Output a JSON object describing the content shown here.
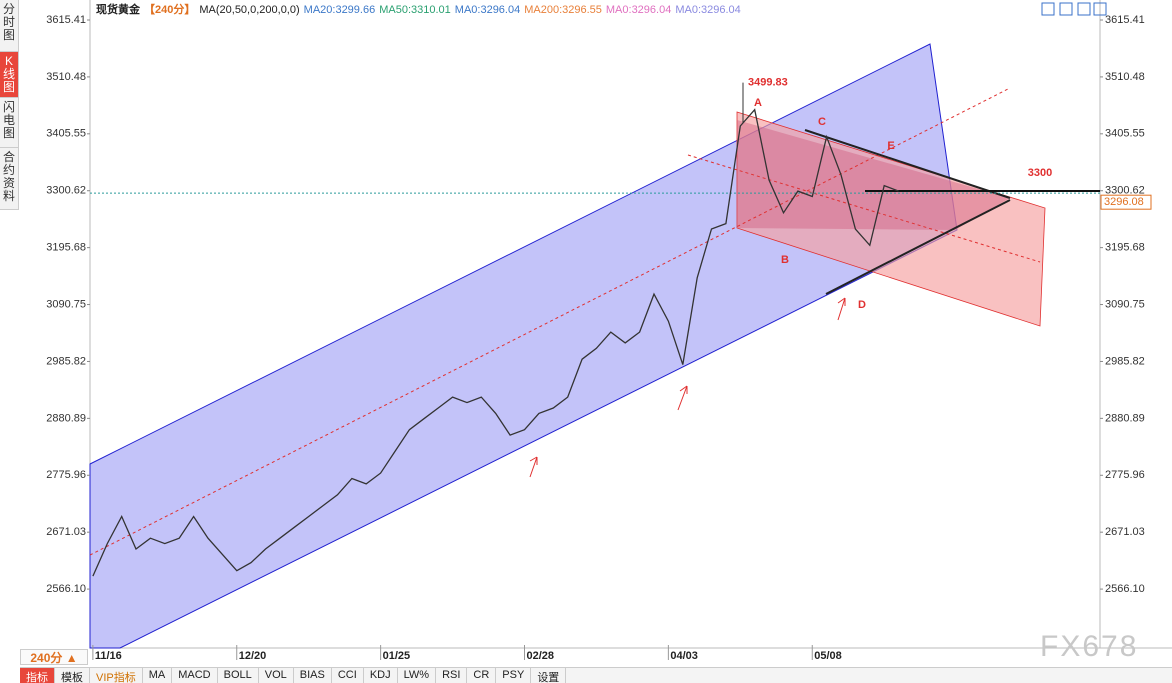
{
  "sidebar": {
    "tabs": [
      "分时图",
      "K线图",
      "闪电图",
      "合约资料"
    ],
    "active": 1
  },
  "header": {
    "symbol": "现货黄金",
    "period": "【240分】",
    "ma_params": "MA(20,50,0,200,0,0)",
    "ma_values": [
      {
        "text": "MA20:3299.66",
        "color": "#3c78c8"
      },
      {
        "text": "MA50:3310.01",
        "color": "#2aa070"
      },
      {
        "text": "MA0:3296.04",
        "color": "#3c78c8"
      },
      {
        "text": "MA200:3296.55",
        "color": "#e8803a"
      },
      {
        "text": "MA0:3296.04",
        "color": "#e070c0"
      },
      {
        "text": "MA0:3296.04",
        "color": "#8a8ae0"
      }
    ]
  },
  "period_button": "240分 ▲",
  "toolbar": [
    "指标",
    "模板",
    "VIP指标",
    "MA",
    "MACD",
    "BOLL",
    "VOL",
    "BIAS",
    "CCI",
    "KDJ",
    "LW%",
    "RSI",
    "CR",
    "PSY",
    "设置"
  ],
  "watermark": "FX678",
  "chart_data": {
    "type": "line",
    "x": [
      0,
      1,
      2,
      3,
      4,
      5,
      6,
      7,
      8,
      9,
      10,
      11,
      12,
      13,
      14,
      15,
      16,
      17,
      18,
      19,
      20,
      21,
      22,
      23,
      24,
      25,
      26,
      27,
      28,
      29,
      30,
      31,
      32,
      33,
      34,
      35,
      36,
      37,
      38,
      39,
      40,
      41,
      42,
      43,
      44,
      45,
      46,
      47,
      48,
      49,
      50,
      51,
      52,
      53,
      54,
      55,
      56
    ],
    "series": [
      {
        "color": "#333333",
        "values": [
          2590,
          2650,
          2700,
          2640,
          2660,
          2650,
          2660,
          2700,
          2660,
          2630,
          2600,
          2615,
          2640,
          2660,
          2680,
          2700,
          2720,
          2740,
          2770,
          2760,
          2780,
          2820,
          2860,
          2880,
          2900,
          2920,
          2910,
          2920,
          2890,
          2850,
          2860,
          2890,
          2900,
          2920,
          2990,
          3010,
          3040,
          3020,
          3040,
          3110,
          3060,
          2980,
          3140,
          3230,
          3240,
          3420,
          3450,
          3320,
          3260,
          3300,
          3290,
          3400,
          3330,
          3230,
          3200,
          3310,
          3300
        ]
      }
    ],
    "xlim": [
      -0.2,
      70
    ],
    "xticks": [
      {
        "value": 0,
        "label": "11/16"
      },
      {
        "value": 10,
        "label": "12/20"
      },
      {
        "value": 20,
        "label": "01/25"
      },
      {
        "value": 30,
        "label": "02/28"
      },
      {
        "value": 40,
        "label": "04/03"
      },
      {
        "value": 50,
        "label": "05/08"
      }
    ],
    "ylim": [
      2463,
      3615.41
    ],
    "yticks": [
      3615.41,
      3510.48,
      3405.55,
      3300.62,
      3195.68,
      3090.75,
      2985.82,
      2880.89,
      2775.96,
      2671.03,
      {
        "value": 2566.1,
        "label": "2566.10"
      }
    ],
    "high": 3499.83,
    "level": 3300,
    "last_price": 3296.08,
    "points": [
      "A",
      "B",
      "C",
      "D",
      "E"
    ]
  }
}
